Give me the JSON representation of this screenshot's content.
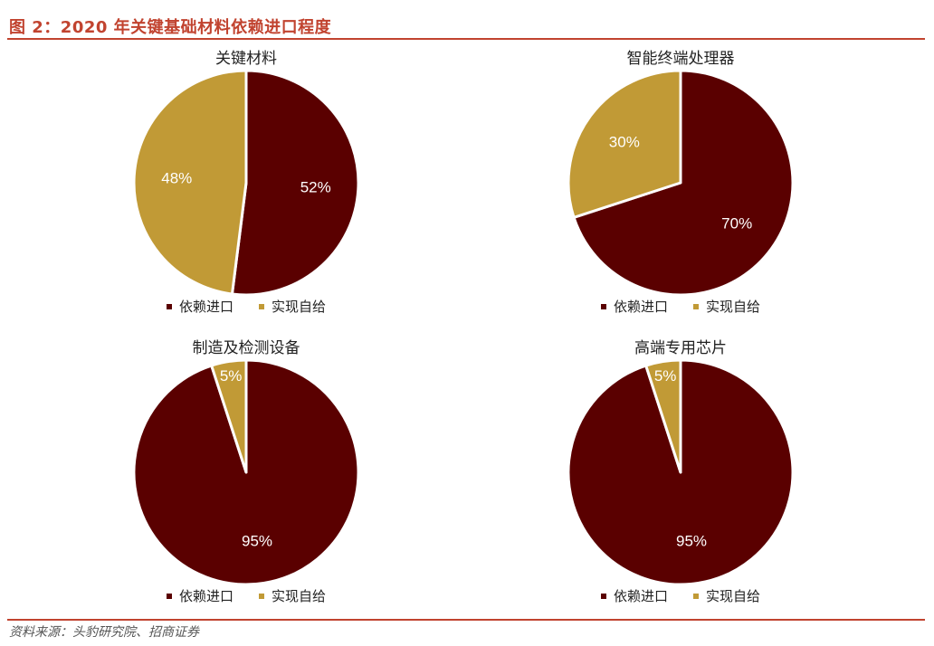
{
  "figure": {
    "title": "图 2：2020 年关键基础材料依赖进口程度",
    "source": "资料来源：头豹研究院、招商证券"
  },
  "colors": {
    "import": "#5a0000",
    "self": "#c19a36",
    "accent": "#c1432f"
  },
  "legend": [
    "依赖进口",
    "实现自给"
  ],
  "chart_data": [
    {
      "type": "pie",
      "title": "关键材料",
      "labels": [
        "依赖进口",
        "实现自给"
      ],
      "values": [
        52,
        48
      ],
      "value_labels": [
        "52%",
        "48%"
      ]
    },
    {
      "type": "pie",
      "title": "智能终端处理器",
      "labels": [
        "依赖进口",
        "实现自给"
      ],
      "values": [
        70,
        30
      ],
      "value_labels": [
        "70%",
        "30%"
      ]
    },
    {
      "type": "pie",
      "title": "制造及检测设备",
      "labels": [
        "依赖进口",
        "实现自给"
      ],
      "values": [
        95,
        5
      ],
      "value_labels": [
        "95%",
        "5%"
      ]
    },
    {
      "type": "pie",
      "title": "高端专用芯片",
      "labels": [
        "依赖进口",
        "实现自给"
      ],
      "values": [
        95,
        5
      ],
      "value_labels": [
        "95%",
        "5%"
      ]
    }
  ]
}
